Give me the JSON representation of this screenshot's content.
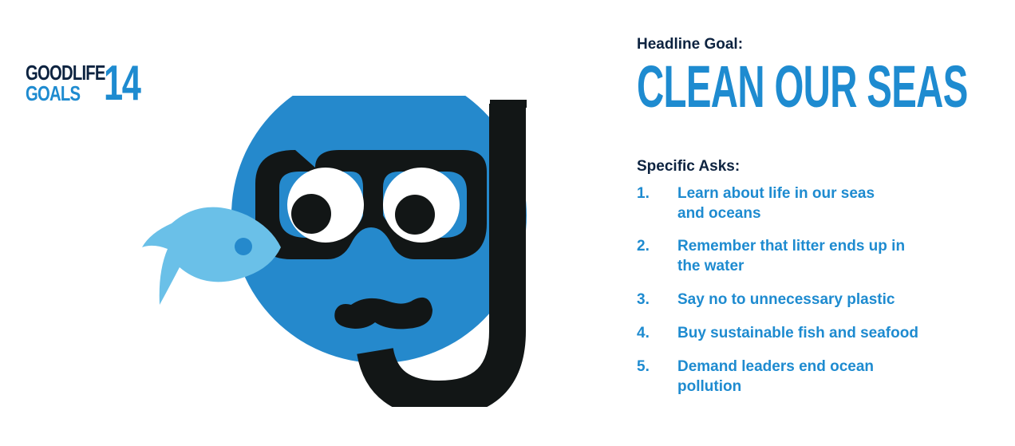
{
  "logo": {
    "line1": "GOODLIFE",
    "line2": "GOALS",
    "number": "14"
  },
  "headline": {
    "label": "Headline Goal:",
    "title": "CLEAN OUR SEAS"
  },
  "asks": {
    "label": "Specific Asks:",
    "items": [
      {
        "num": "1.",
        "text": "Learn about life in our seas and oceans"
      },
      {
        "num": "2.",
        "text": "Remember that litter ends up in the water"
      },
      {
        "num": "3.",
        "text": "Say no to unnecessary plastic"
      },
      {
        "num": "4.",
        "text": "Buy sustainable fish and seafood"
      },
      {
        "num": "5.",
        "text": "Demand leaders end ocean pollution"
      }
    ]
  },
  "colors": {
    "navy": "#0d2340",
    "blue": "#1e8bd0",
    "light_blue": "#6ac0e8",
    "black": "#121616"
  },
  "icons": {
    "illustration": "snorkel-face-icon",
    "fish": "fish-icon"
  }
}
